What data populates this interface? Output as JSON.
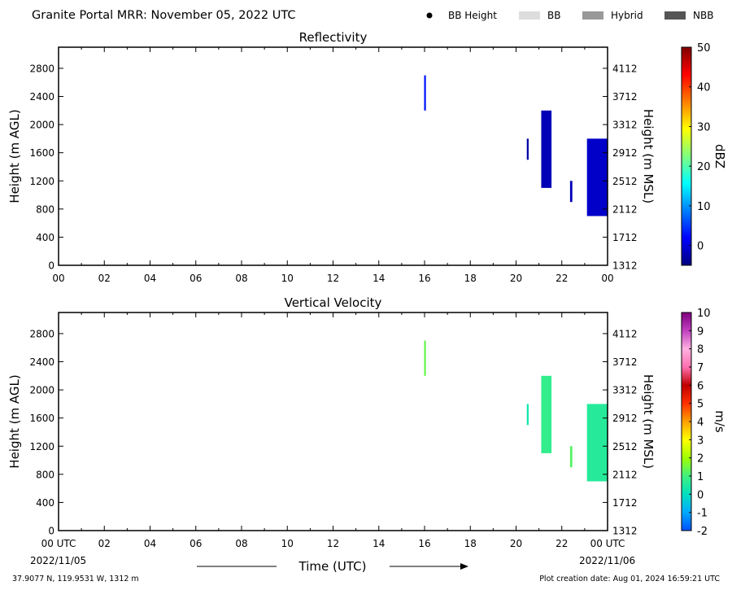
{
  "header": {
    "title": "Granite Portal MRR:  November 05, 2022 UTC",
    "legend": [
      {
        "label": "BB Height",
        "kind": "dot",
        "color": "#000000"
      },
      {
        "label": "BB",
        "kind": "swatch",
        "color": "#dddddd"
      },
      {
        "label": "Hybrid",
        "kind": "swatch",
        "color": "#999999"
      },
      {
        "label": "NBB",
        "kind": "swatch",
        "color": "#555555"
      }
    ]
  },
  "footer": {
    "location": "37.9077 N, 119.9531 W, 1312 m",
    "creation": "Plot creation date: Aug 01, 2024 16:59:21 UTC",
    "xlabel": "Time (UTC)",
    "start_date": "2022/11/05",
    "end_date": "2022/11/06"
  },
  "chart_data": [
    {
      "type": "heatmap",
      "title": "Reflectivity",
      "xlabel": "",
      "ylabel": "Height (m AGL)",
      "ylabel_right": "Height (m MSL)",
      "xlim": [
        0,
        24
      ],
      "ylim": [
        0,
        3100
      ],
      "x_ticks": [
        "00",
        "02",
        "04",
        "06",
        "08",
        "10",
        "12",
        "14",
        "16",
        "18",
        "20",
        "22",
        "00"
      ],
      "y_ticks": [
        0,
        400,
        800,
        1200,
        1600,
        2000,
        2400,
        2800
      ],
      "y_ticks_right": [
        "1312",
        "1712",
        "2112",
        "2512",
        "2912",
        "3312",
        "3712",
        "4112"
      ],
      "colorbar": {
        "label": "dBZ",
        "range": [
          -5,
          50
        ],
        "ticks": [
          0,
          10,
          20,
          30,
          40,
          50
        ],
        "stops": [
          "#00007f",
          "#0000ff",
          "#007fff",
          "#00ffff",
          "#7fff7f",
          "#ffff00",
          "#ff7f00",
          "#ff0000",
          "#7f0000"
        ]
      },
      "cells": [
        {
          "x0": 15.98,
          "x1": 16.06,
          "y0": 2200,
          "y1": 2700,
          "value": 3
        },
        {
          "x0": 20.47,
          "x1": 20.55,
          "y0": 1500,
          "y1": 1800,
          "value": -3
        },
        {
          "x0": 21.1,
          "x1": 21.55,
          "y0": 1100,
          "y1": 2200,
          "value": -2
        },
        {
          "x0": 22.36,
          "x1": 22.46,
          "y0": 900,
          "y1": 1200,
          "value": -2
        },
        {
          "x0": 23.1,
          "x1": 24.0,
          "y0": 700,
          "y1": 1800,
          "value": -1
        }
      ]
    },
    {
      "type": "heatmap",
      "title": "Vertical Velocity",
      "xlabel": "Time (UTC)",
      "ylabel": "Height (m AGL)",
      "ylabel_right": "Height (m MSL)",
      "xlim": [
        0,
        24
      ],
      "ylim": [
        0,
        3100
      ],
      "x_ticks": [
        "00 UTC",
        "02",
        "04",
        "06",
        "08",
        "10",
        "12",
        "14",
        "16",
        "18",
        "20",
        "22",
        "00 UTC"
      ],
      "y_ticks": [
        0,
        400,
        800,
        1200,
        1600,
        2000,
        2400,
        2800
      ],
      "y_ticks_right": [
        "1312",
        "1712",
        "2112",
        "2512",
        "2912",
        "3312",
        "3712",
        "4112"
      ],
      "colorbar": {
        "label": "m/s",
        "range": [
          -2,
          10
        ],
        "ticks": [
          -2,
          -1,
          0,
          1,
          2,
          3,
          4,
          5,
          6,
          7,
          8,
          9,
          10
        ],
        "stops": [
          "#0050ff",
          "#00aaff",
          "#00e0c0",
          "#40f080",
          "#a0ff00",
          "#ffff00",
          "#ffa000",
          "#ff3000",
          "#c00000",
          "#ff70b0",
          "#ffb0e0",
          "#c040c0",
          "#800080"
        ]
      },
      "cells": [
        {
          "x0": 15.98,
          "x1": 16.06,
          "y0": 2200,
          "y1": 2700,
          "value": 1.4
        },
        {
          "x0": 20.47,
          "x1": 20.55,
          "y0": 1500,
          "y1": 1800,
          "value": 0.3
        },
        {
          "x0": 21.1,
          "x1": 21.55,
          "y0": 1100,
          "y1": 2200,
          "value": 0.8
        },
        {
          "x0": 22.36,
          "x1": 22.46,
          "y0": 900,
          "y1": 1200,
          "value": 1.2
        },
        {
          "x0": 23.1,
          "x1": 24.0,
          "y0": 700,
          "y1": 1800,
          "value": 0.6
        }
      ]
    }
  ]
}
